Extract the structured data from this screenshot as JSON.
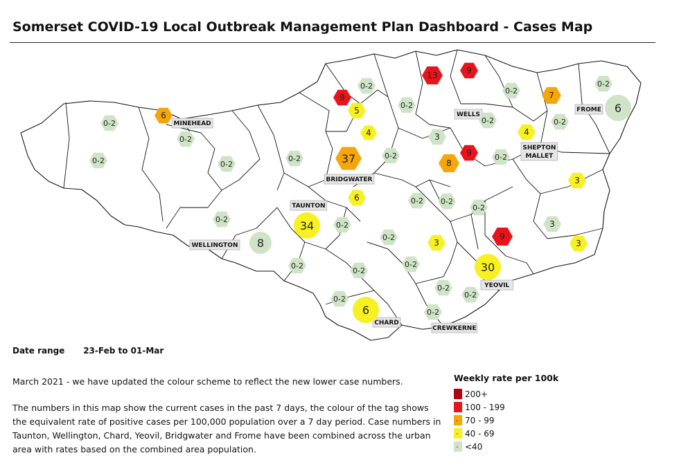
{
  "title": "Somerset COVID-19 Local Outbreak Management Plan Dashboard - Cases Map",
  "date_range": {
    "label": "Date range",
    "from": "23-Feb",
    "to_word": "to",
    "to": "01-Mar"
  },
  "notes": [
    "March 2021 - we have updated the colour scheme to reflect the new lower case numbers.",
    "The numbers in this map show the current cases in the past 7 days, the colour of the tag shows the equivalent rate of positive cases per 100,000 population over a 7 day period. Case numbers in Taunton, Wellington, Chard, Yeovil, Bridgwater and Frome have been combined across the urban area with rates based on the combined area population."
  ],
  "legend": {
    "title": "Weekly rate per 100k",
    "items": [
      {
        "label": "200+",
        "color": "#b5000f"
      },
      {
        "label": "100 - 199",
        "color": "#e8141c"
      },
      {
        "label": "70 - 99",
        "color": "#f5a60a"
      },
      {
        "label": "40 - 69",
        "color": "#f7f023"
      },
      {
        "label": "<40",
        "color": "#cfe3c6"
      }
    ]
  },
  "towns": [
    {
      "name": "MINEHEAD",
      "lines": [
        "MINEHEAD"
      ]
    },
    {
      "name": "WELLS",
      "lines": [
        "WELLS"
      ]
    },
    {
      "name": "FROME",
      "lines": [
        "FROME"
      ]
    },
    {
      "name": "SHEPTON MALLET",
      "lines": [
        "SHEPTON",
        "MALLET"
      ]
    },
    {
      "name": "BRIDGWATER",
      "lines": [
        "BRIDGWATER"
      ]
    },
    {
      "name": "TAUNTON",
      "lines": [
        "TAUNTON"
      ]
    },
    {
      "name": "WELLINGTON",
      "lines": [
        "WELLINGTON"
      ]
    },
    {
      "name": "YEOVIL",
      "lines": [
        "YEOVIL"
      ]
    },
    {
      "name": "CHARD",
      "lines": [
        "CHARD"
      ]
    },
    {
      "name": "CREWKERNE",
      "lines": [
        "CREWKERNE"
      ]
    }
  ],
  "markers": [
    {
      "text": "13",
      "band": "100 - 199"
    },
    {
      "text": "9",
      "band": "100 - 199"
    },
    {
      "text": "0-2",
      "band": "<40"
    },
    {
      "text": "9",
      "band": "100 - 199"
    },
    {
      "text": "5",
      "band": "40 - 69"
    },
    {
      "text": "0-2",
      "band": "<40"
    },
    {
      "text": "0-2",
      "band": "<40"
    },
    {
      "text": "7",
      "band": "70 - 99"
    },
    {
      "text": "0-2",
      "band": "<40"
    },
    {
      "text": "6",
      "band": "<40"
    },
    {
      "text": "6",
      "band": "70 - 99"
    },
    {
      "text": "0-2",
      "band": "<40"
    },
    {
      "text": "0-2",
      "band": "<40"
    },
    {
      "text": "4",
      "band": "40 - 69"
    },
    {
      "text": "3",
      "band": "<40"
    },
    {
      "text": "0-2",
      "band": "<40"
    },
    {
      "text": "4",
      "band": "40 - 69"
    },
    {
      "text": "0-2",
      "band": "<40"
    },
    {
      "text": "0-2",
      "band": "<40"
    },
    {
      "text": "0-2",
      "band": "<40"
    },
    {
      "text": "37",
      "band": "70 - 99"
    },
    {
      "text": "0-2",
      "band": "<40"
    },
    {
      "text": "9",
      "band": "100 - 199"
    },
    {
      "text": "8",
      "band": "70 - 99"
    },
    {
      "text": "0-2",
      "band": "<40"
    },
    {
      "text": "0-2",
      "band": "<40"
    },
    {
      "text": "3",
      "band": "40 - 69"
    },
    {
      "text": "6",
      "band": "40 - 69"
    },
    {
      "text": "0-2",
      "band": "<40"
    },
    {
      "text": "0-2",
      "band": "<40"
    },
    {
      "text": "0-2",
      "band": "<40"
    },
    {
      "text": "0-2",
      "band": "<40"
    },
    {
      "text": "34",
      "band": "40 - 69"
    },
    {
      "text": "0-2",
      "band": "<40"
    },
    {
      "text": "3",
      "band": "<40"
    },
    {
      "text": "8",
      "band": "<40"
    },
    {
      "text": "0-2",
      "band": "<40"
    },
    {
      "text": "3",
      "band": "40 - 69"
    },
    {
      "text": "9",
      "band": "100 - 199"
    },
    {
      "text": "3",
      "band": "40 - 69"
    },
    {
      "text": "0-2",
      "band": "<40"
    },
    {
      "text": "0-2",
      "band": "<40"
    },
    {
      "text": "0-2",
      "band": "<40"
    },
    {
      "text": "30",
      "band": "40 - 69"
    },
    {
      "text": "0-2",
      "band": "<40"
    },
    {
      "text": "0-2",
      "band": "<40"
    },
    {
      "text": "0-2",
      "band": "<40"
    },
    {
      "text": "6",
      "band": "40 - 69"
    },
    {
      "text": "0-2",
      "band": "<40"
    }
  ]
}
